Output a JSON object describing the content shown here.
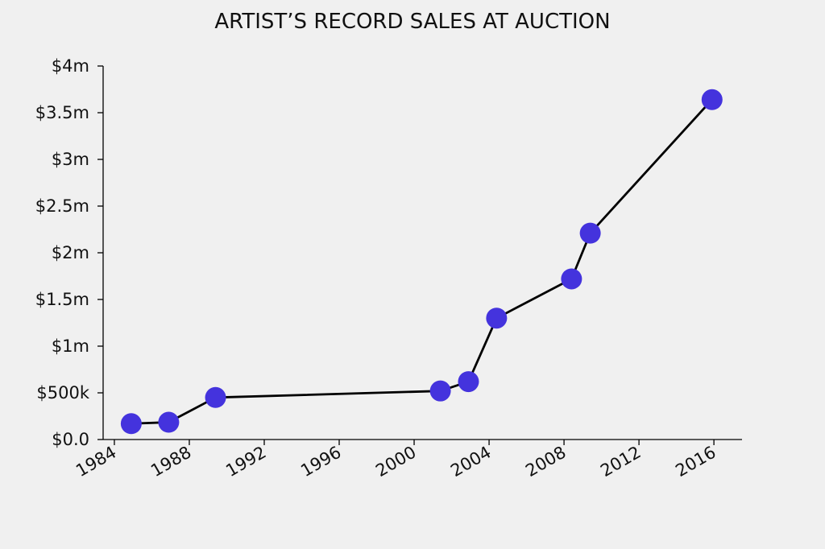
{
  "chart_data": {
    "type": "line",
    "title": "ARTIST’S RECORD SALES AT AUCTION",
    "xlabel": "",
    "ylabel": "",
    "x_ticks": [
      1984,
      1988,
      1992,
      1996,
      2000,
      2004,
      2008,
      2012,
      2016
    ],
    "x_tick_labels": [
      "1984",
      "1988",
      "1992",
      "1996",
      "2000",
      "2004",
      "2008",
      "2012",
      "2016"
    ],
    "y_ticks": [
      0,
      500000,
      1000000,
      1500000,
      2000000,
      2500000,
      3000000,
      3500000,
      4000000
    ],
    "y_tick_labels": [
      "$0.0",
      "$500k",
      "$1m",
      "$1.5m",
      "$2m",
      "$2.5m",
      "$3m",
      "$3.5m",
      "$4m"
    ],
    "xlim": [
      1983.4,
      2017.5
    ],
    "ylim": [
      0,
      4000000
    ],
    "grid": false,
    "series": [
      {
        "x": [
          1984.9,
          1986.9,
          1989.4,
          2001.4,
          2002.9,
          2004.4,
          2008.4,
          2009.4,
          2015.9
        ],
        "y": [
          170000,
          185000,
          450000,
          520000,
          620000,
          1300000,
          1720000,
          2210000,
          3640000
        ]
      }
    ],
    "colors": {
      "marker": "#4433dd",
      "line": "#000000",
      "background": "#f0f0f0"
    }
  }
}
